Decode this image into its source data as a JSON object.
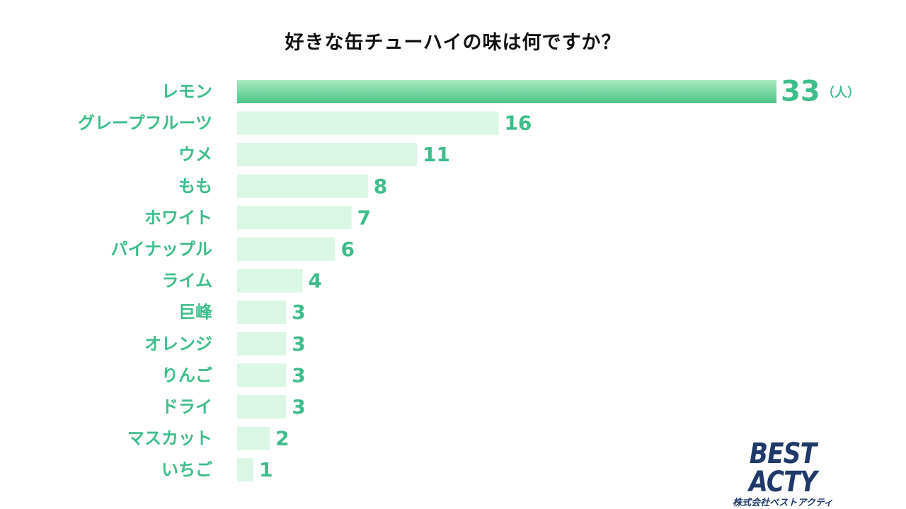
{
  "chart_data": {
    "type": "bar",
    "orientation": "horizontal",
    "title": "好きな缶チューハイの味は何ですか？",
    "unit_label": "（人）",
    "categories": [
      "レモン",
      "グレープフルーツ",
      "ウメ",
      "もも",
      "ホワイト",
      "パイナップル",
      "ライム",
      "巨峰",
      "オレンジ",
      "りんご",
      "ドライ",
      "マスカット",
      "いちご"
    ],
    "values": [
      33,
      16,
      11,
      8,
      7,
      6,
      4,
      3,
      3,
      3,
      3,
      2,
      1
    ],
    "xlim": [
      0,
      33
    ],
    "grid": false,
    "legend": "none",
    "colors": {
      "highlight_top": "#a8ebbf",
      "highlight_bottom": "#4cc487",
      "bar": "#d9f7e4",
      "label": "#3dbd8a",
      "title": "#111111"
    }
  },
  "logo": {
    "main": "BEST ACTY",
    "sub": "株式会社ベストアクティ",
    "color": "#1f3a68"
  }
}
